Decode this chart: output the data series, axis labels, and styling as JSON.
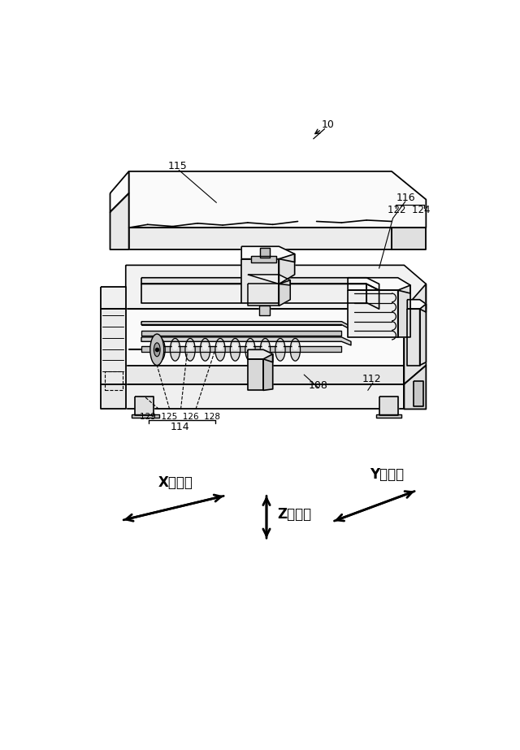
{
  "fig_width": 6.4,
  "fig_height": 9.23,
  "dpi": 100,
  "bg_color": "#ffffff",
  "label_10": "10",
  "label_115": "115",
  "label_116": "116",
  "label_122_124": "122  124",
  "label_108": "108",
  "label_112": "112",
  "label_114": "114",
  "label_129_125_126_128": "129  125  126  128",
  "label_x": "X軸方向",
  "label_y": "Y軸方向",
  "label_z": "Z軸方向",
  "line_color": "#000000",
  "text_color": "#000000",
  "font_size_number": 9,
  "font_size_axis": 12,
  "fill_light": "#f0f0f0",
  "fill_mid": "#e0e0e0",
  "fill_dark": "#c8c8c8",
  "fill_white": "#fafafa"
}
